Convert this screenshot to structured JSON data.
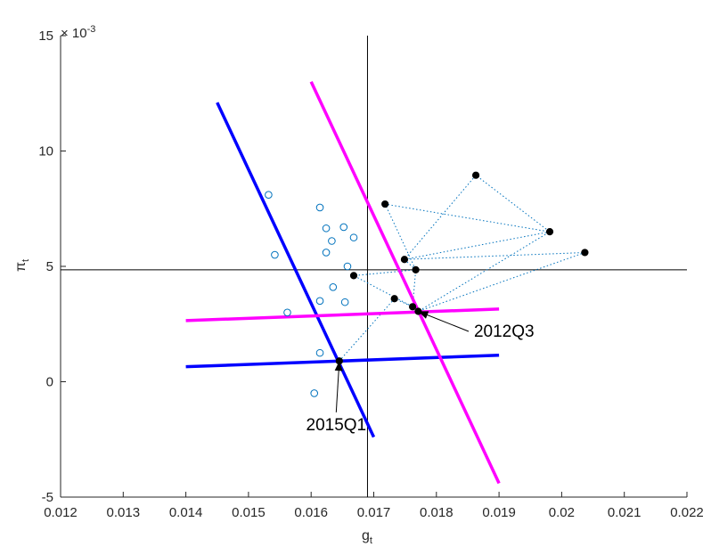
{
  "chart_data": {
    "type": "scatter",
    "title": "",
    "xlabel": "g",
    "xlabel_sub": "t",
    "ylabel": "π",
    "ylabel_sub": "t",
    "y_exponent": "× 10",
    "y_exponent_power": "-3",
    "xlim": [
      0.012,
      0.022
    ],
    "ylim": [
      -5,
      15
    ],
    "xticks": [
      0.012,
      0.013,
      0.014,
      0.015,
      0.016,
      0.017,
      0.018,
      0.019,
      0.02,
      0.021,
      0.022
    ],
    "xtick_labels": [
      "0.012",
      "0.013",
      "0.014",
      "0.015",
      "0.016",
      "0.017",
      "0.018",
      "0.019",
      "0.02",
      "0.021",
      "0.022"
    ],
    "yticks": [
      -5,
      0,
      5,
      10,
      15
    ],
    "ytick_labels": [
      "-5",
      "0",
      "5",
      "10",
      "15"
    ],
    "grid": false,
    "colors": {
      "axis": "#262626",
      "reference_lines": "#000000",
      "blue": "#0000ff",
      "magenta": "#ff00ff",
      "open_markers": "#0072bd",
      "dotted_path": "#0072bd",
      "filled_markers": "#000000"
    },
    "reference_lines": {
      "x": 0.0169,
      "y": 4.85
    },
    "lines": [
      {
        "color": "blue",
        "x": [
          0.0145,
          0.017
        ],
        "y": [
          12.1,
          -2.4
        ]
      },
      {
        "color": "blue",
        "x": [
          0.014,
          0.019
        ],
        "y": [
          0.65,
          1.15
        ]
      },
      {
        "color": "magenta",
        "x": [
          0.016,
          0.019
        ],
        "y": [
          13.0,
          -4.4
        ]
      },
      {
        "color": "magenta",
        "x": [
          0.014,
          0.019
        ],
        "y": [
          2.65,
          3.15
        ]
      }
    ],
    "open_points": [
      {
        "x": 0.01532,
        "y": 8.1
      },
      {
        "x": 0.01542,
        "y": 5.5
      },
      {
        "x": 0.01562,
        "y": 3.0
      },
      {
        "x": 0.01614,
        "y": 7.55
      },
      {
        "x": 0.01624,
        "y": 6.65
      },
      {
        "x": 0.01652,
        "y": 6.7
      },
      {
        "x": 0.01633,
        "y": 6.1
      },
      {
        "x": 0.01624,
        "y": 5.6
      },
      {
        "x": 0.01668,
        "y": 6.25
      },
      {
        "x": 0.01658,
        "y": 5.0
      },
      {
        "x": 0.01614,
        "y": 3.5
      },
      {
        "x": 0.01635,
        "y": 4.1
      },
      {
        "x": 0.01654,
        "y": 3.45
      },
      {
        "x": 0.01614,
        "y": 1.25
      },
      {
        "x": 0.01605,
        "y": -0.5
      }
    ],
    "filled_points": [
      {
        "x": 0.01718,
        "y": 7.7
      },
      {
        "x": 0.01863,
        "y": 8.95
      },
      {
        "x": 0.01981,
        "y": 6.5
      },
      {
        "x": 0.02037,
        "y": 5.6
      },
      {
        "x": 0.01749,
        "y": 5.3
      },
      {
        "x": 0.01767,
        "y": 4.85
      },
      {
        "x": 0.01668,
        "y": 4.6
      },
      {
        "x": 0.01733,
        "y": 3.6
      },
      {
        "x": 0.01762,
        "y": 3.25
      },
      {
        "x": 0.01771,
        "y": 3.05
      },
      {
        "x": 0.01645,
        "y": 0.9
      }
    ],
    "dotted_path": [
      {
        "x": 0.01645,
        "y": 0.9
      },
      {
        "x": 0.01733,
        "y": 3.6
      },
      {
        "x": 0.01762,
        "y": 3.25
      },
      {
        "x": 0.01668,
        "y": 4.6
      },
      {
        "x": 0.01767,
        "y": 4.85
      },
      {
        "x": 0.01749,
        "y": 5.3
      },
      {
        "x": 0.02037,
        "y": 5.6
      },
      {
        "x": 0.01771,
        "y": 3.05
      },
      {
        "x": 0.01981,
        "y": 6.5
      },
      {
        "x": 0.01863,
        "y": 8.95
      },
      {
        "x": 0.01749,
        "y": 5.3
      },
      {
        "x": 0.01981,
        "y": 6.5
      },
      {
        "x": 0.01718,
        "y": 7.7
      },
      {
        "x": 0.01767,
        "y": 4.85
      },
      {
        "x": 0.01762,
        "y": 3.25
      }
    ],
    "annotations": [
      {
        "text": "2012Q3",
        "x": 0.01771,
        "y": 3.05,
        "label_x": 0.0186,
        "label_y": 1.95
      },
      {
        "text": "2015Q1",
        "x": 0.01645,
        "y": 0.9,
        "label_x": 0.0164,
        "label_y": -2.1
      }
    ]
  }
}
